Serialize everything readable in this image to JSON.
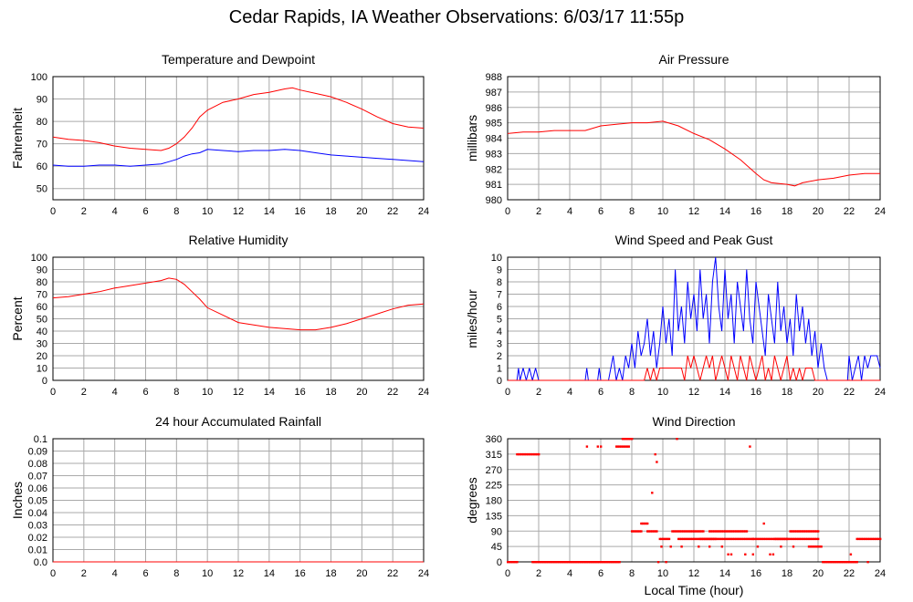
{
  "page": {
    "title": "Cedar Rapids, IA Weather Observations: 6/03/17 11:55p"
  },
  "colors": {
    "temperature": "#ff0000",
    "dewpoint": "#0000ff",
    "red": "#ff0000",
    "blue": "#0000ff",
    "grid": "#aaaaaa"
  },
  "chart_data": [
    {
      "id": "temp",
      "type": "line",
      "title": "Temperature and Dewpoint",
      "ylabel": "Fahrenheit",
      "xlabel": "",
      "xlim": [
        0,
        24
      ],
      "ylim": [
        45,
        100
      ],
      "yticks": [
        50,
        60,
        70,
        80,
        90,
        100
      ],
      "xticks": [
        0,
        2,
        4,
        6,
        8,
        10,
        12,
        14,
        16,
        18,
        20,
        22,
        24
      ],
      "grid": true,
      "series": [
        {
          "color": "#ff0000",
          "x": [
            0,
            1,
            2,
            3,
            4,
            5,
            6,
            7,
            7.5,
            8,
            8.5,
            9,
            9.5,
            10,
            11,
            12,
            13,
            14,
            15,
            15.5,
            16,
            17,
            18,
            19,
            20,
            21,
            22,
            23,
            24
          ],
          "y": [
            73,
            72,
            71.5,
            70.5,
            69,
            68,
            67.5,
            67,
            68,
            70,
            73,
            77,
            82,
            85,
            88.5,
            90,
            92,
            93,
            94.5,
            95,
            94,
            92.5,
            91,
            88.5,
            85.5,
            82,
            79,
            77.5,
            77
          ]
        },
        {
          "color": "#0000ff",
          "x": [
            0,
            1,
            2,
            3,
            4,
            5,
            6,
            7,
            7.5,
            8,
            8.5,
            9,
            9.5,
            10,
            11,
            12,
            13,
            14,
            15,
            16,
            17,
            18,
            19,
            20,
            21,
            22,
            23,
            24
          ],
          "y": [
            60.5,
            60,
            60,
            60.5,
            60.5,
            60,
            60.5,
            61,
            62,
            63,
            64.5,
            65.5,
            66,
            67.5,
            67,
            66.5,
            67,
            67,
            67.5,
            67,
            66,
            65,
            64.5,
            64,
            63.5,
            63,
            62.5,
            62
          ]
        }
      ]
    },
    {
      "id": "pressure",
      "type": "line",
      "title": "Air Pressure",
      "ylabel": "millibars",
      "xlabel": "",
      "xlim": [
        0,
        24
      ],
      "ylim": [
        980,
        988
      ],
      "yticks": [
        980,
        981,
        982,
        983,
        984,
        985,
        986,
        987,
        988
      ],
      "xticks": [
        0,
        2,
        4,
        6,
        8,
        10,
        12,
        14,
        16,
        18,
        20,
        22,
        24
      ],
      "grid": true,
      "series": [
        {
          "color": "#ff0000",
          "x": [
            0,
            1,
            2,
            3,
            4,
            5,
            6,
            7,
            8,
            9,
            10,
            11,
            12,
            13,
            14,
            15,
            16,
            16.5,
            17,
            18,
            18.5,
            19,
            20,
            21,
            22,
            23,
            24
          ],
          "y": [
            984.3,
            984.4,
            984.4,
            984.5,
            984.5,
            984.5,
            984.8,
            984.9,
            985,
            985,
            985.1,
            984.8,
            984.3,
            983.9,
            983.3,
            982.6,
            981.7,
            981.3,
            981.1,
            981,
            980.9,
            981.1,
            981.3,
            981.4,
            981.6,
            981.7,
            981.7
          ]
        }
      ]
    },
    {
      "id": "humidity",
      "type": "line",
      "title": "Relative Humidity",
      "ylabel": "Percent",
      "xlabel": "",
      "xlim": [
        0,
        24
      ],
      "ylim": [
        0,
        100
      ],
      "yticks": [
        0,
        10,
        20,
        30,
        40,
        50,
        60,
        70,
        80,
        90,
        100
      ],
      "xticks": [
        0,
        2,
        4,
        6,
        8,
        10,
        12,
        14,
        16,
        18,
        20,
        22,
        24
      ],
      "grid": true,
      "series": [
        {
          "color": "#ff0000",
          "x": [
            0,
            1,
            2,
            3,
            4,
            5,
            6,
            7,
            7.5,
            8,
            8.5,
            9,
            9.5,
            10,
            11,
            12,
            13,
            14,
            15,
            16,
            17,
            18,
            19,
            20,
            21,
            22,
            23,
            24
          ],
          "y": [
            67,
            68,
            70,
            72,
            75,
            77,
            79,
            81,
            83,
            82,
            78,
            72,
            66,
            59,
            53,
            47,
            45,
            43,
            42,
            41,
            41,
            43,
            46,
            50,
            54,
            58,
            61,
            62
          ]
        }
      ]
    },
    {
      "id": "wind",
      "type": "line",
      "title": "Wind Speed and Peak Gust",
      "ylabel": "miles/hour",
      "xlabel": "",
      "xlim": [
        0,
        24
      ],
      "ylim": [
        0,
        10
      ],
      "yticks": [
        0,
        1,
        2,
        3,
        4,
        5,
        6,
        7,
        8,
        9,
        10
      ],
      "xticks": [
        0,
        2,
        4,
        6,
        8,
        10,
        12,
        14,
        16,
        18,
        20,
        22,
        24
      ],
      "grid": true,
      "series": [
        {
          "color": "#0000ff",
          "x": [
            0,
            0.6,
            0.7,
            0.8,
            1.0,
            1.2,
            1.4,
            1.6,
            1.8,
            2.0,
            5.0,
            5.1,
            5.2,
            5.8,
            5.9,
            6.0,
            6.5,
            6.8,
            7.0,
            7.2,
            7.4,
            7.6,
            7.8,
            8.0,
            8.2,
            8.4,
            8.6,
            8.8,
            9.0,
            9.2,
            9.4,
            9.6,
            9.8,
            10.0,
            10.2,
            10.4,
            10.6,
            10.8,
            11.0,
            11.2,
            11.4,
            11.6,
            11.8,
            12.0,
            12.2,
            12.4,
            12.6,
            12.8,
            13.0,
            13.2,
            13.4,
            13.6,
            13.8,
            14.0,
            14.2,
            14.4,
            14.6,
            14.8,
            15.0,
            15.2,
            15.4,
            15.6,
            15.8,
            16.0,
            16.2,
            16.4,
            16.6,
            16.8,
            17.0,
            17.2,
            17.4,
            17.6,
            17.8,
            18.0,
            18.2,
            18.4,
            18.6,
            18.8,
            19.0,
            19.2,
            19.4,
            19.6,
            19.8,
            20.0,
            20.2,
            20.4,
            20.6,
            21.9,
            22.0,
            22.2,
            22.4,
            22.6,
            22.8,
            23.0,
            23.2,
            23.4,
            23.6,
            23.8,
            24.0
          ],
          "y": [
            0,
            0,
            1,
            0,
            1,
            0,
            1,
            0,
            1,
            0,
            0,
            1,
            0,
            0,
            1,
            0,
            0,
            2,
            0,
            1,
            0,
            2,
            1,
            3,
            1,
            4,
            2,
            3,
            5,
            2,
            4,
            1,
            3,
            6,
            3,
            5,
            2,
            9,
            4,
            6,
            3,
            8,
            5,
            7,
            4,
            9,
            5,
            7,
            3,
            8,
            10,
            6,
            4,
            9,
            5,
            7,
            3,
            8,
            6,
            4,
            9,
            5,
            3,
            8,
            6,
            4,
            2,
            7,
            5,
            3,
            8,
            4,
            6,
            3,
            5,
            2,
            7,
            4,
            6,
            3,
            5,
            2,
            4,
            1,
            3,
            1,
            0,
            0,
            2,
            0,
            1,
            2,
            0,
            2,
            1,
            2,
            2,
            2,
            1
          ]
        },
        {
          "color": "#ff0000",
          "x": [
            0,
            8.8,
            9.0,
            9.2,
            9.4,
            9.6,
            9.8,
            10.0,
            11.0,
            11.2,
            11.4,
            11.6,
            11.8,
            12.0,
            12.2,
            12.4,
            12.6,
            12.8,
            13.0,
            13.2,
            13.4,
            13.6,
            13.8,
            14.0,
            14.2,
            14.4,
            14.6,
            14.8,
            15.0,
            15.2,
            15.4,
            15.6,
            15.8,
            16.0,
            16.2,
            16.4,
            16.6,
            16.8,
            17.0,
            17.2,
            17.4,
            17.6,
            17.8,
            18.0,
            18.2,
            18.4,
            18.6,
            18.8,
            19.0,
            19.2,
            19.4,
            19.6,
            19.8,
            20.0,
            20.2,
            24.0
          ],
          "y": [
            0,
            0,
            1,
            0,
            1,
            0,
            1,
            1,
            1,
            1,
            0,
            2,
            1,
            2,
            1,
            0,
            1,
            2,
            1,
            2,
            0,
            1,
            2,
            1,
            0,
            2,
            1,
            0,
            2,
            1,
            0,
            2,
            1,
            0,
            1,
            2,
            0,
            1,
            0,
            2,
            1,
            0,
            1,
            2,
            0,
            1,
            0,
            1,
            0,
            1,
            1,
            1,
            0,
            0,
            0,
            0
          ]
        }
      ]
    },
    {
      "id": "rain",
      "type": "line",
      "title": "24 hour Accumulated Rainfall",
      "ylabel": "Inches",
      "xlabel": "",
      "xlim": [
        0,
        24
      ],
      "ylim": [
        0,
        0.1
      ],
      "yticks": [
        "0.0",
        "0.01",
        "0.02",
        "0.03",
        "0.04",
        "0.05",
        "0.06",
        "0.07",
        "0.08",
        "0.09",
        "0.1"
      ],
      "xticks": [
        0,
        2,
        4,
        6,
        8,
        10,
        12,
        14,
        16,
        18,
        20,
        22,
        24
      ],
      "grid": true,
      "series": [
        {
          "color": "#ff0000",
          "x": [
            0,
            24
          ],
          "y": [
            0,
            0
          ]
        }
      ]
    },
    {
      "id": "winddir",
      "type": "scatter",
      "title": "Wind Direction",
      "ylabel": "degrees",
      "xlabel": "Local Time (hour)",
      "xlim": [
        0,
        24
      ],
      "ylim": [
        0,
        360
      ],
      "yticks": [
        0,
        45,
        90,
        135,
        180,
        225,
        270,
        315,
        360
      ],
      "xticks": [
        0,
        2,
        4,
        6,
        8,
        10,
        12,
        14,
        16,
        18,
        20,
        22,
        24
      ],
      "grid": true,
      "series": [
        {
          "color": "#ff0000",
          "segments": [
            {
              "x0": 0.0,
              "x1": 0.6,
              "y": 0
            },
            {
              "x0": 0.6,
              "x1": 2.0,
              "y": 315
            },
            {
              "x0": 1.6,
              "x1": 7.2,
              "y": 0
            },
            {
              "x0": 7.4,
              "x1": 8.0,
              "y": 360
            },
            {
              "x0": 7.0,
              "x1": 7.8,
              "y": 337.5
            },
            {
              "x0": 8.0,
              "x1": 8.6,
              "y": 90
            },
            {
              "x0": 8.6,
              "x1": 9.0,
              "y": 112.5
            },
            {
              "x0": 9.0,
              "x1": 9.6,
              "y": 90
            },
            {
              "x0": 9.8,
              "x1": 10.4,
              "y": 67.5
            },
            {
              "x0": 10.6,
              "x1": 12.6,
              "y": 90
            },
            {
              "x0": 11.0,
              "x1": 13.4,
              "y": 67.5
            },
            {
              "x0": 12.4,
              "x1": 15.8,
              "y": 67.5
            },
            {
              "x0": 13.0,
              "x1": 15.4,
              "y": 90
            },
            {
              "x0": 15.8,
              "x1": 18.0,
              "y": 67.5
            },
            {
              "x0": 17.2,
              "x1": 20.0,
              "y": 67.5
            },
            {
              "x0": 18.2,
              "x1": 20.0,
              "y": 90
            },
            {
              "x0": 19.4,
              "x1": 20.2,
              "y": 45
            },
            {
              "x0": 20.3,
              "x1": 22.5,
              "y": 0
            },
            {
              "x0": 22.5,
              "x1": 24.0,
              "y": 67.5
            }
          ],
          "points": [
            {
              "x": 5.1,
              "y": 337.5
            },
            {
              "x": 5.8,
              "y": 337.5
            },
            {
              "x": 6.0,
              "y": 337.5
            },
            {
              "x": 9.5,
              "y": 315
            },
            {
              "x": 9.6,
              "y": 292.5
            },
            {
              "x": 9.3,
              "y": 202.5
            },
            {
              "x": 10.9,
              "y": 360
            },
            {
              "x": 15.6,
              "y": 337.5
            },
            {
              "x": 16.5,
              "y": 112.5
            },
            {
              "x": 9.9,
              "y": 45
            },
            {
              "x": 10.5,
              "y": 45
            },
            {
              "x": 11.2,
              "y": 45
            },
            {
              "x": 12.3,
              "y": 45
            },
            {
              "x": 13.0,
              "y": 45
            },
            {
              "x": 13.8,
              "y": 45
            },
            {
              "x": 14.2,
              "y": 22.5
            },
            {
              "x": 14.4,
              "y": 22.5
            },
            {
              "x": 15.3,
              "y": 22.5
            },
            {
              "x": 15.8,
              "y": 22.5
            },
            {
              "x": 16.1,
              "y": 45
            },
            {
              "x": 16.9,
              "y": 22.5
            },
            {
              "x": 17.1,
              "y": 22.5
            },
            {
              "x": 17.6,
              "y": 45
            },
            {
              "x": 18.4,
              "y": 45
            },
            {
              "x": 9.7,
              "y": 0
            },
            {
              "x": 10.2,
              "y": 0
            },
            {
              "x": 23.2,
              "y": 0
            },
            {
              "x": 22.1,
              "y": 22.5
            }
          ]
        }
      ]
    }
  ]
}
